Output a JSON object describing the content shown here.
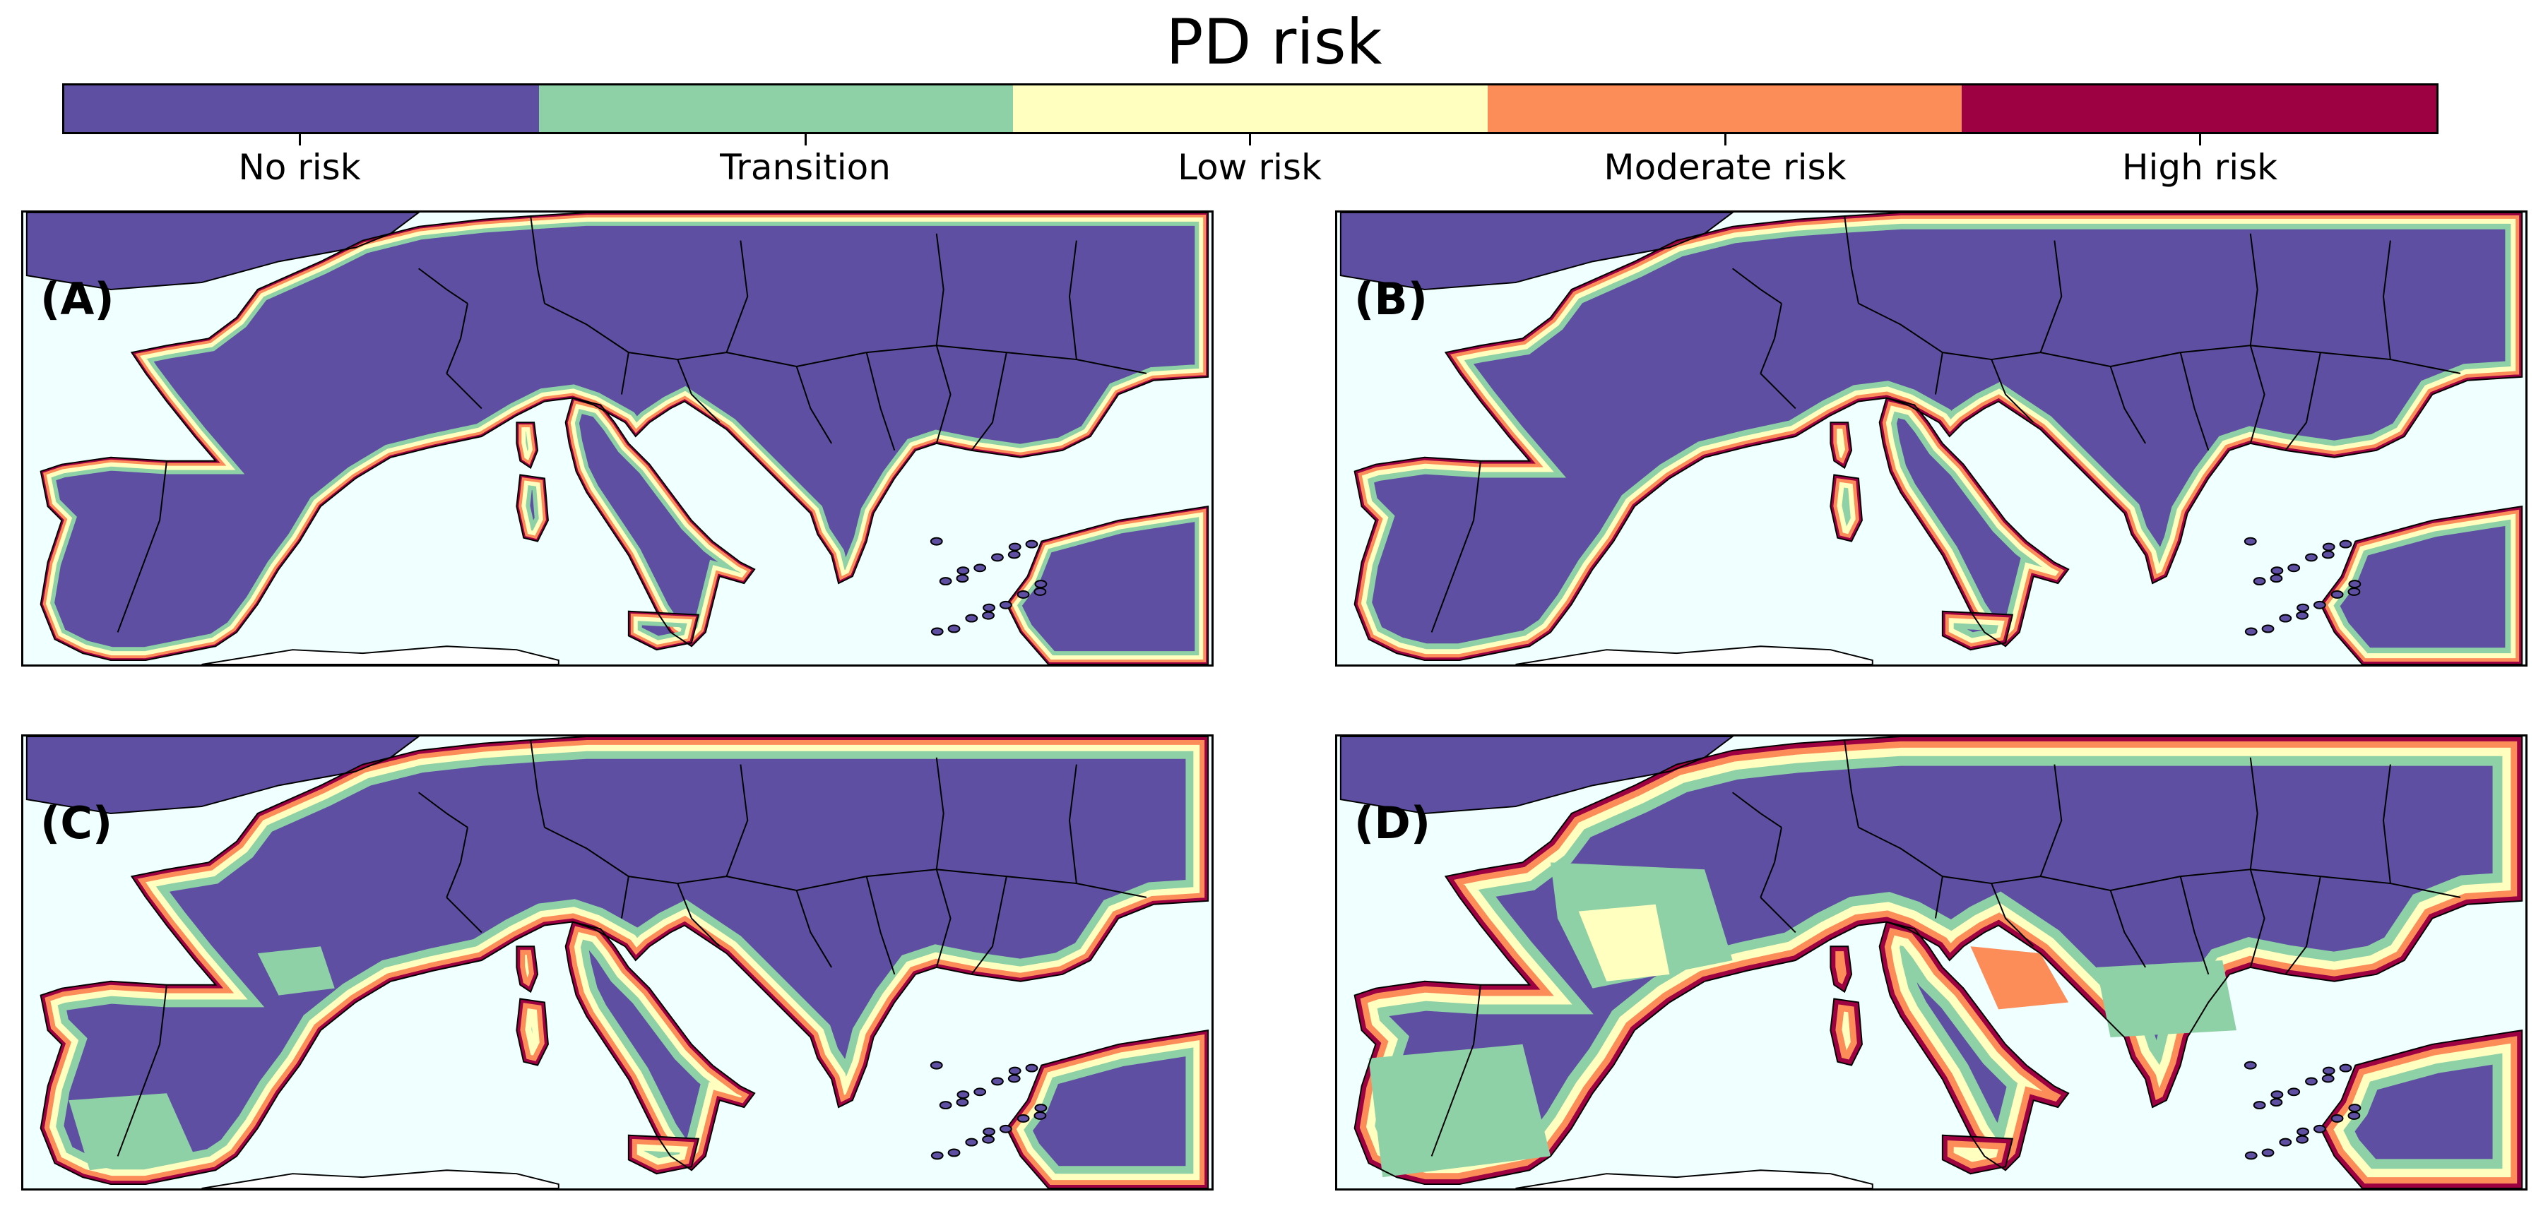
{
  "title": "PD risk",
  "legend": {
    "categories": [
      {
        "label": "No risk",
        "color": "#5e4fa2"
      },
      {
        "label": "Transition",
        "color": "#8ed1a6"
      },
      {
        "label": "Low risk",
        "color": "#ffffbf"
      },
      {
        "label": "Moderate risk",
        "color": "#fc8d59"
      },
      {
        "label": "High risk",
        "color": "#9e0142"
      }
    ]
  },
  "colors": {
    "sea": "#f0ffff",
    "border": "#000000"
  },
  "panels": [
    {
      "label": "(A)",
      "risk_level": 1
    },
    {
      "label": "(B)",
      "risk_level": 2
    },
    {
      "label": "(C)",
      "risk_level": 3
    },
    {
      "label": "(D)",
      "risk_level": 4
    }
  ]
}
